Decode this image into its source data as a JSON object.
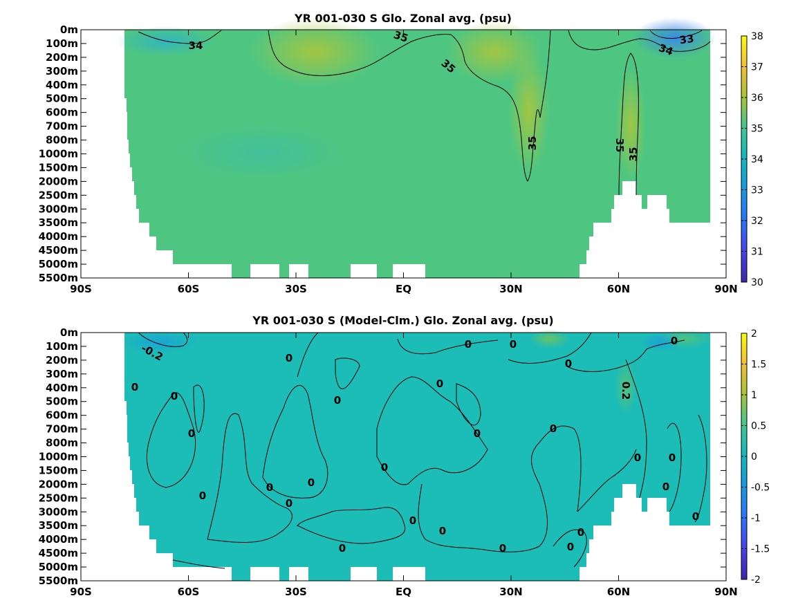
{
  "chart_data": [
    {
      "type": "heatmap",
      "title": "YR 001-030 S Glo. Zonal avg. (psu)",
      "x_ticks": [
        "90S",
        "60S",
        "30S",
        "EQ",
        "30N",
        "60N",
        "90N"
      ],
      "y_ticks": [
        "0m",
        "100m",
        "200m",
        "300m",
        "400m",
        "500m",
        "600m",
        "700m",
        "800m",
        "1000m",
        "1500m",
        "2000m",
        "2500m",
        "3000m",
        "3500m",
        "4000m",
        "4500m",
        "5000m",
        "5500m"
      ],
      "colorbar_ticks": [
        "38",
        "37",
        "36",
        "35",
        "34",
        "33",
        "32",
        "31",
        "30"
      ],
      "clim": [
        30,
        38
      ],
      "colormap": "parula",
      "field_color": "#4ec682",
      "contour_labels": [
        "34",
        "35",
        "35",
        "35",
        "35",
        "35",
        "33",
        "34"
      ]
    },
    {
      "type": "heatmap",
      "title": "YR 001-030 S (Model-Clm.) Glo. Zonal avg. (psu)",
      "x_ticks": [
        "90S",
        "60S",
        "30S",
        "EQ",
        "30N",
        "60N",
        "90N"
      ],
      "y_ticks": [
        "0m",
        "100m",
        "200m",
        "300m",
        "400m",
        "500m",
        "600m",
        "700m",
        "800m",
        "1000m",
        "1500m",
        "2000m",
        "2500m",
        "3000m",
        "3500m",
        "4000m",
        "4500m",
        "5000m",
        "5500m"
      ],
      "colorbar_ticks": [
        "2",
        "1.5",
        "1",
        "0.5",
        "0",
        "-0.5",
        "-1",
        "-1.5",
        "-2"
      ],
      "clim": [
        -2,
        2
      ],
      "colormap": "parula",
      "field_color": "#1cbcb7",
      "contour_labels": [
        "-0.2",
        "0",
        "0",
        "0",
        "0",
        "0",
        "0",
        "0",
        "0",
        "0",
        "0",
        "0",
        "0",
        "0",
        "0",
        "0",
        "0",
        "0",
        "0",
        "0",
        "0",
        "0",
        "0",
        "0",
        "0",
        "0",
        "0",
        "0",
        "0.2"
      ]
    }
  ]
}
